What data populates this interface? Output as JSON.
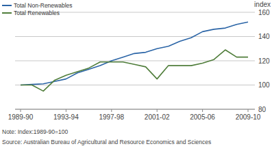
{
  "chart_data": {
    "type": "line",
    "categories": [
      "1989-90",
      null,
      null,
      null,
      "1993-94",
      null,
      null,
      null,
      "1997-98",
      null,
      null,
      null,
      "2001-02",
      null,
      null,
      null,
      "2005-06",
      null,
      null,
      null,
      "2009-10"
    ],
    "series": [
      {
        "name": "Total Non-Renewables",
        "color": "#2a64a6",
        "values": [
          100,
          100.5,
          101,
          103,
          105,
          110,
          113,
          116,
          120,
          123,
          126,
          127,
          130,
          132,
          136,
          139,
          144,
          146,
          147,
          150,
          152
        ]
      },
      {
        "name": "Total Renewables",
        "color": "#4f7d3a",
        "values": [
          100,
          100,
          95,
          104,
          108,
          111,
          114,
          119,
          119,
          119,
          117,
          115,
          105,
          116,
          116,
          116,
          118,
          121,
          129,
          123,
          123
        ]
      }
    ],
    "ylim": [
      80,
      160
    ],
    "yticks": [
      80,
      100,
      120,
      140,
      160
    ],
    "y_label": "index",
    "annotations": [
      "Note: Index:1989-90=100",
      "Source: Australian Bureau of Agricultural and Resource Economics and Sciences"
    ],
    "grid": true,
    "legend": "top-left"
  }
}
